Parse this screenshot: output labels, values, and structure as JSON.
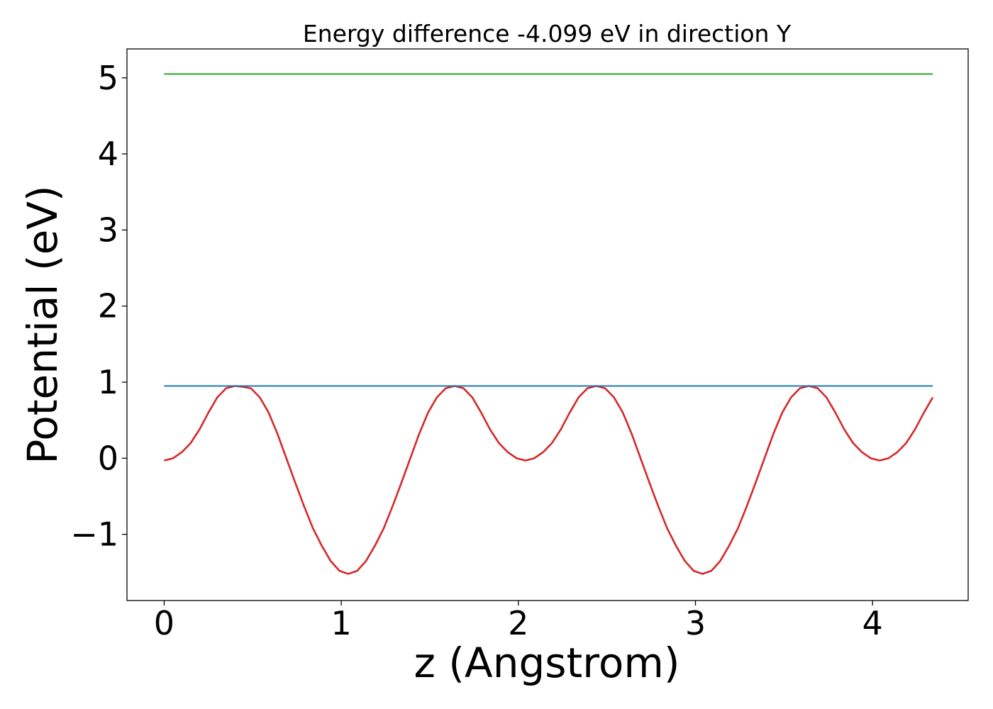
{
  "chart_data": {
    "type": "line",
    "title": "Energy difference -4.099 eV in direction Y",
    "xlabel": "z (Angstrom)",
    "ylabel": "Potential (eV)",
    "xlim": [
      -0.21,
      4.54
    ],
    "ylim": [
      -1.87,
      5.38
    ],
    "x_ticks": [
      0,
      1,
      2,
      3,
      4
    ],
    "x_tick_labels": [
      "0",
      "1",
      "2",
      "3",
      "4"
    ],
    "y_ticks": [
      -1,
      0,
      1,
      2,
      3,
      4,
      5
    ],
    "y_tick_labels": [
      "−1",
      "0",
      "1",
      "2",
      "3",
      "4",
      "5"
    ],
    "grid": false,
    "series": [
      {
        "color": "#d62728",
        "x": [
          0.0,
          0.05,
          0.1,
          0.15,
          0.2,
          0.25,
          0.3,
          0.35,
          0.4,
          0.44,
          0.49,
          0.54,
          0.59,
          0.64,
          0.69,
          0.74,
          0.79,
          0.84,
          0.89,
          0.94,
          0.99,
          1.04,
          1.09,
          1.14,
          1.19,
          1.24,
          1.29,
          1.34,
          1.39,
          1.44,
          1.49,
          1.54,
          1.59,
          1.64,
          1.69,
          1.74,
          1.79,
          1.84,
          1.89,
          1.94,
          1.99,
          2.04,
          2.09,
          2.14,
          2.19,
          2.24,
          2.29,
          2.34,
          2.39,
          2.44,
          2.49,
          2.54,
          2.59,
          2.64,
          2.69,
          2.74,
          2.79,
          2.84,
          2.89,
          2.94,
          2.99,
          3.04,
          3.09,
          3.14,
          3.19,
          3.24,
          3.29,
          3.34,
          3.39,
          3.44,
          3.49,
          3.54,
          3.59,
          3.64,
          3.69,
          3.74,
          3.79,
          3.84,
          3.89,
          3.94,
          3.99,
          4.04,
          4.09,
          4.14,
          4.19,
          4.24,
          4.29,
          4.34
        ],
        "y": [
          -0.03,
          0.0,
          0.08,
          0.2,
          0.38,
          0.6,
          0.8,
          0.92,
          0.95,
          0.94,
          0.92,
          0.8,
          0.6,
          0.32,
          0.0,
          -0.32,
          -0.63,
          -0.92,
          -1.15,
          -1.35,
          -1.48,
          -1.52,
          -1.48,
          -1.35,
          -1.15,
          -0.92,
          -0.63,
          -0.32,
          0.0,
          0.32,
          0.6,
          0.8,
          0.92,
          0.95,
          0.92,
          0.8,
          0.6,
          0.38,
          0.2,
          0.08,
          0.0,
          -0.03,
          0.0,
          0.08,
          0.2,
          0.38,
          0.6,
          0.8,
          0.92,
          0.95,
          0.92,
          0.8,
          0.6,
          0.32,
          0.0,
          -0.32,
          -0.63,
          -0.92,
          -1.15,
          -1.35,
          -1.48,
          -1.52,
          -1.48,
          -1.35,
          -1.15,
          -0.92,
          -0.63,
          -0.32,
          0.0,
          0.32,
          0.6,
          0.8,
          0.92,
          0.95,
          0.92,
          0.8,
          0.6,
          0.38,
          0.2,
          0.08,
          0.0,
          -0.03,
          0.0,
          0.08,
          0.2,
          0.38,
          0.6,
          0.8
        ]
      },
      {
        "color": "#1f77b4",
        "x": [
          0.0,
          4.34
        ],
        "y": [
          0.95,
          0.95
        ]
      },
      {
        "color": "#2ca02c",
        "x": [
          0.0,
          4.34
        ],
        "y": [
          5.05,
          5.05
        ]
      }
    ]
  }
}
